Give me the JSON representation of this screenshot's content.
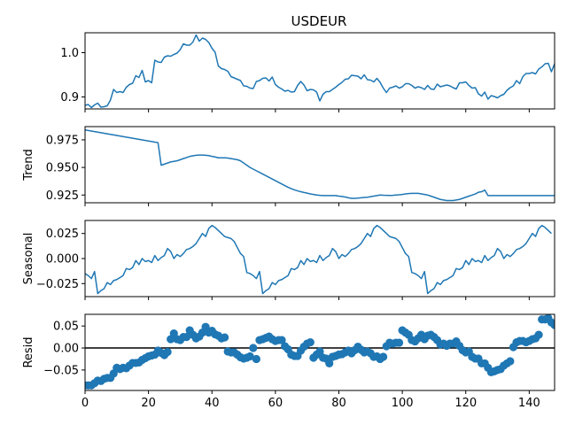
{
  "chart_data": [
    {
      "type": "line",
      "title": "USDEUR",
      "ylabel": "",
      "xlim": [
        0,
        148
      ],
      "ylim": [
        0.873,
        1.045
      ],
      "yticks": [
        0.9,
        1.0
      ],
      "ytick_labels": [
        "0.9",
        "1.0"
      ],
      "xticks": [
        0,
        20,
        40,
        60,
        80,
        100,
        120,
        140
      ],
      "color": "#1f77b4",
      "x_start": 0,
      "values": [
        0.881,
        0.883,
        0.876,
        0.882,
        0.886,
        0.877,
        0.878,
        0.88,
        0.893,
        0.917,
        0.91,
        0.912,
        0.91,
        0.922,
        0.928,
        0.931,
        0.948,
        0.944,
        0.96,
        0.934,
        0.937,
        0.932,
        0.983,
        0.979,
        0.978,
        0.99,
        0.993,
        0.992,
        0.996,
        0.999,
        1.007,
        1.02,
        1.017,
        1.017,
        1.024,
        1.04,
        1.026,
        1.033,
        1.03,
        1.023,
        1.01,
        1.001,
        0.97,
        0.964,
        0.962,
        0.958,
        0.946,
        0.943,
        0.94,
        0.937,
        0.925,
        0.924,
        0.92,
        0.919,
        0.935,
        0.937,
        0.942,
        0.943,
        0.936,
        0.945,
        0.928,
        0.922,
        0.918,
        0.913,
        0.915,
        0.911,
        0.912,
        0.926,
        0.935,
        0.927,
        0.914,
        0.917,
        0.916,
        0.911,
        0.891,
        0.906,
        0.912,
        0.912,
        0.917,
        0.922,
        0.928,
        0.933,
        0.94,
        0.941,
        0.949,
        0.948,
        0.947,
        0.941,
        0.95,
        0.939,
        0.938,
        0.934,
        0.942,
        0.933,
        0.92,
        0.91,
        0.92,
        0.922,
        0.925,
        0.92,
        0.923,
        0.93,
        0.93,
        0.926,
        0.92,
        0.923,
        0.921,
        0.917,
        0.926,
        0.918,
        0.917,
        0.929,
        0.923,
        0.925,
        0.927,
        0.925,
        0.921,
        0.918,
        0.932,
        0.932,
        0.934,
        0.926,
        0.92,
        0.921,
        0.907,
        0.902,
        0.911,
        0.895,
        0.903,
        0.901,
        0.898,
        0.903,
        0.906,
        0.915,
        0.921,
        0.925,
        0.937,
        0.93,
        0.946,
        0.953,
        0.953,
        0.955,
        0.952,
        0.963,
        0.968,
        0.975,
        0.976,
        0.957,
        0.975
      ]
    },
    {
      "type": "line",
      "ylabel": "Trend",
      "xlim": [
        0,
        148
      ],
      "ylim": [
        0.918,
        0.987
      ],
      "yticks": [
        0.925,
        0.95,
        0.975
      ],
      "ytick_labels": [
        "0.925",
        "0.950",
        "0.975"
      ],
      "xticks": [
        0,
        20,
        40,
        60,
        80,
        100,
        120,
        140
      ],
      "color": "#1f77b4",
      "x_start": 0,
      "values": [
        0.984,
        0.9835,
        0.983,
        0.9825,
        0.982,
        0.9815,
        0.981,
        0.9805,
        0.98,
        0.9795,
        0.979,
        0.9785,
        0.978,
        0.9775,
        0.977,
        0.9765,
        0.976,
        0.9755,
        0.975,
        0.9745,
        0.974,
        0.9735,
        0.973,
        0.9725,
        0.952,
        0.953,
        0.954,
        0.955,
        0.9555,
        0.956,
        0.957,
        0.958,
        0.959,
        0.96,
        0.9605,
        0.961,
        0.9612,
        0.9612,
        0.961,
        0.9607,
        0.96,
        0.9595,
        0.9587,
        0.9587,
        0.9587,
        0.9585,
        0.958,
        0.9575,
        0.957,
        0.956,
        0.954,
        0.952,
        0.95,
        0.9485,
        0.947,
        0.9455,
        0.944,
        0.9425,
        0.941,
        0.9395,
        0.938,
        0.9365,
        0.935,
        0.9335,
        0.932,
        0.9308,
        0.9297,
        0.9288,
        0.928,
        0.9273,
        0.9267,
        0.926,
        0.9255,
        0.925,
        0.9247,
        0.9245,
        0.9245,
        0.9245,
        0.9245,
        0.9245,
        0.924,
        0.9237,
        0.9232,
        0.9225,
        0.922,
        0.922,
        0.9222,
        0.9225,
        0.9228,
        0.923,
        0.9235,
        0.924,
        0.9245,
        0.925,
        0.9248,
        0.9247,
        0.9246,
        0.9247,
        0.925,
        0.9252,
        0.9255,
        0.926,
        0.9263,
        0.9265,
        0.9265,
        0.9265,
        0.926,
        0.9255,
        0.925,
        0.924,
        0.923,
        0.922,
        0.921,
        0.9205,
        0.92,
        0.92,
        0.92,
        0.9205,
        0.921,
        0.922,
        0.923,
        0.924,
        0.925,
        0.926,
        0.9275,
        0.928,
        0.9295,
        0.9245,
        0.9245,
        0.9245,
        0.9245,
        0.9245,
        0.9245,
        0.9245,
        0.9245,
        0.9245,
        0.9245,
        0.9245,
        0.9245,
        0.9245,
        0.9245,
        0.9245,
        0.9245,
        0.9245,
        0.9245,
        0.9245,
        0.9245,
        0.9245,
        0.9245
      ]
    },
    {
      "type": "line",
      "ylabel": "Seasonal",
      "xlim": [
        0,
        148
      ],
      "ylim": [
        -0.038,
        0.038
      ],
      "yticks": [
        -0.025,
        0.0,
        0.025
      ],
      "ytick_labels": [
        "−0.025",
        "0.000",
        "0.025"
      ],
      "xticks": [
        0,
        20,
        40,
        60,
        80,
        100,
        120,
        140
      ],
      "color": "#1f77b4",
      "x_start": 0,
      "period": 52,
      "values": [
        -0.015,
        -0.017,
        -0.02,
        -0.013,
        -0.035,
        -0.032,
        -0.03,
        -0.024,
        -0.026,
        -0.022,
        -0.021,
        -0.019,
        -0.017,
        -0.01,
        -0.011,
        -0.009,
        -0.002,
        -0.006,
        0.0,
        -0.003,
        -0.002,
        -0.004,
        0.003,
        -0.002,
        0.001,
        0.003,
        0.01,
        0.007,
        0.0,
        0.004,
        0.002,
        0.005,
        0.009,
        0.01,
        0.012,
        0.015,
        0.02,
        0.025,
        0.022,
        0.03,
        0.033,
        0.031,
        0.028,
        0.025,
        0.022,
        0.021,
        0.02,
        0.017,
        0.011,
        0.005,
        0.002,
        -0.014
      ]
    },
    {
      "type": "scatter",
      "ylabel": "Resid",
      "xlim": [
        0,
        148
      ],
      "ylim": [
        -0.0965,
        0.0765
      ],
      "yticks": [
        -0.05,
        0.0,
        0.05
      ],
      "ytick_labels": [
        "−0.05",
        "0.00",
        "0.05"
      ],
      "xticks": [
        0,
        20,
        40,
        60,
        80,
        100,
        120,
        140
      ],
      "xtick_labels": [
        "0",
        "20",
        "40",
        "60",
        "80",
        "100",
        "120",
        "140"
      ],
      "color": "#1f77b4",
      "zero_line": true,
      "x_start": 0,
      "values": [
        -0.085,
        -0.085,
        -0.085,
        -0.08,
        -0.074,
        -0.075,
        -0.07,
        -0.068,
        -0.068,
        -0.058,
        -0.045,
        -0.048,
        -0.045,
        -0.046,
        -0.04,
        -0.034,
        -0.034,
        -0.033,
        -0.027,
        -0.023,
        -0.019,
        -0.017,
        -0.015,
        -0.006,
        -0.011,
        -0.016,
        -0.009,
        0.02,
        0.033,
        0.02,
        0.018,
        0.025,
        0.025,
        0.04,
        0.03,
        0.022,
        0.026,
        0.035,
        0.048,
        0.035,
        0.039,
        0.031,
        0.028,
        0.022,
        0.024,
        -0.008,
        -0.01,
        -0.01,
        -0.015,
        -0.021,
        -0.024,
        -0.022,
        -0.019,
        0.0,
        -0.025,
        0.018,
        0.02,
        0.023,
        0.026,
        0.02,
        0.016,
        0.018,
        0.018,
        0.004,
        -0.003,
        -0.015,
        -0.018,
        -0.018,
        -0.006,
        0.003,
        0.01,
        0.013,
        -0.022,
        -0.015,
        -0.008,
        -0.022,
        -0.024,
        -0.035,
        -0.02,
        -0.018,
        -0.015,
        -0.014,
        -0.01,
        -0.006,
        -0.012,
        -0.005,
        0.003,
        -0.004,
        -0.01,
        -0.008,
        -0.012,
        -0.02,
        -0.019,
        -0.025,
        -0.02,
        0.004,
        0.012,
        0.01,
        0.012,
        0.012,
        0.04,
        0.035,
        0.03,
        0.018,
        0.015,
        0.022,
        0.03,
        0.02,
        0.028,
        0.03,
        0.025,
        0.018,
        0.008,
        0.01,
        0.005,
        0.01,
        0.01,
        0.015,
        0.005,
        -0.005,
        -0.01,
        -0.008,
        -0.02,
        -0.024,
        -0.024,
        -0.035,
        -0.035,
        -0.045,
        -0.055,
        -0.053,
        -0.05,
        -0.048,
        -0.04,
        -0.035,
        -0.03,
        0.002,
        0.013,
        0.016,
        0.016,
        0.013,
        0.016,
        0.02,
        0.022,
        0.03,
        0.065,
        0.065,
        0.068,
        0.058,
        0.052
      ]
    }
  ]
}
